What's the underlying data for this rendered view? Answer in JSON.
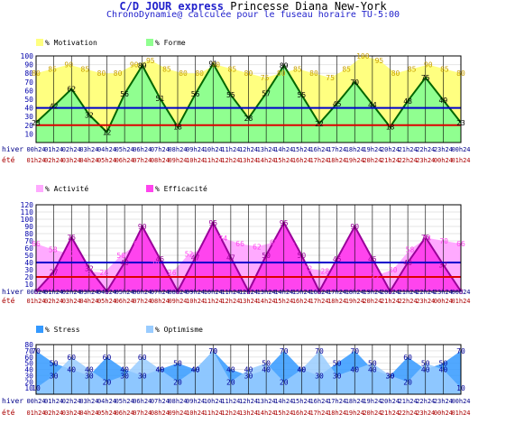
{
  "header": {
    "title": "C/D JOUR express",
    "person": "Princesse Diana New-York",
    "subtitle": "ChronoDynamie@ calculée pour le fuseau horaire TU-5:00"
  },
  "time_axis": {
    "hiver_label": "hiver",
    "ete_label": "été",
    "hiver_ticks": [
      "00h24",
      "01h24",
      "02h24",
      "03h24",
      "04h24",
      "05h24",
      "06h24",
      "07h24",
      "08h24",
      "09h24",
      "10h24",
      "11h24",
      "12h24",
      "13h24",
      "14h24",
      "15h24",
      "16h24",
      "17h24",
      "18h24",
      "19h24",
      "20h24",
      "21h24",
      "22h24",
      "23h24",
      "00h24"
    ],
    "ete_ticks": [
      "01h24",
      "02h24",
      "03h24",
      "04h24",
      "05h24",
      "06h24",
      "07h24",
      "08h24",
      "09h24",
      "10h24",
      "11h24",
      "12h24",
      "13h24",
      "14h24",
      "15h24",
      "16h24",
      "17h24",
      "18h24",
      "19h24",
      "20h24",
      "21h24",
      "22h24",
      "23h24",
      "00h24",
      "01h24"
    ]
  },
  "colors": {
    "motivation": "#ffff80",
    "motivation_label": "#c8a000",
    "forme": "#90ff90",
    "forme_line": "#006600",
    "activite": "#ffaaff",
    "efficacite": "#ff44ee",
    "efficacite_line": "#990099",
    "stress": "#3399ff",
    "optimisme": "#99ccff",
    "stress_label": "#000099",
    "blue_line": "#0000cc",
    "red_line": "#dd0000"
  },
  "chart_data": [
    {
      "type": "area",
      "y_ticks": [
        "10",
        "20",
        "30",
        "40",
        "50",
        "60",
        "70",
        "80",
        "90",
        "100"
      ],
      "ylim": [
        0,
        100
      ],
      "hlines": [
        40,
        20
      ],
      "series": [
        {
          "name": "% Motivation",
          "values": [
            80,
            85,
            90,
            85,
            80,
            80,
            90,
            95,
            85,
            80,
            80,
            90,
            85,
            80,
            75,
            80,
            85,
            80,
            75,
            85,
            100,
            95,
            80,
            85,
            90,
            85,
            80
          ]
        },
        {
          "name": "% Forme",
          "values": [
            23,
            42,
            62,
            32,
            12,
            56,
            89,
            51,
            18,
            56,
            91,
            55,
            28,
            57,
            89,
            55,
            22,
            45,
            70,
            44,
            18,
            48,
            75,
            49,
            23
          ]
        }
      ]
    },
    {
      "type": "area",
      "y_ticks": [
        "10",
        "20",
        "30",
        "40",
        "50",
        "60",
        "70",
        "80",
        "90",
        "100",
        "110",
        "120"
      ],
      "ylim": [
        0,
        120
      ],
      "hlines": [
        40,
        20
      ],
      "series": [
        {
          "name": "% Activité",
          "values": [
            66,
            58,
            52,
            28,
            26,
            50,
            66,
            38,
            26,
            52,
            60,
            74,
            66,
            62,
            68,
            64,
            32,
            28,
            32,
            60,
            22,
            30,
            58,
            74,
            70,
            66
          ]
        },
        {
          "name": "% Efficacité",
          "values": [
            0,
            27,
            75,
            32,
            0,
            40,
            90,
            45,
            0,
            47,
            95,
            47,
            0,
            50,
            95,
            50,
            0,
            45,
            90,
            45,
            0,
            40,
            75,
            37,
            0
          ]
        }
      ]
    },
    {
      "type": "area",
      "y_ticks": [
        "10",
        "20",
        "30",
        "40",
        "50",
        "60",
        "70",
        "80"
      ],
      "ylim": [
        0,
        80
      ],
      "series": [
        {
          "name": "% Stress",
          "values": [
            70,
            50,
            40,
            30,
            60,
            40,
            30,
            40,
            50,
            40,
            70,
            40,
            30,
            40,
            70,
            40,
            30,
            50,
            70,
            40,
            30,
            60,
            40,
            50,
            70
          ]
        },
        {
          "name": "% Optimisme",
          "values": [
            10,
            30,
            60,
            40,
            20,
            30,
            60,
            40,
            20,
            40,
            70,
            20,
            40,
            50,
            20,
            40,
            70,
            30,
            40,
            50,
            30,
            20,
            50,
            40,
            10
          ]
        }
      ]
    }
  ]
}
